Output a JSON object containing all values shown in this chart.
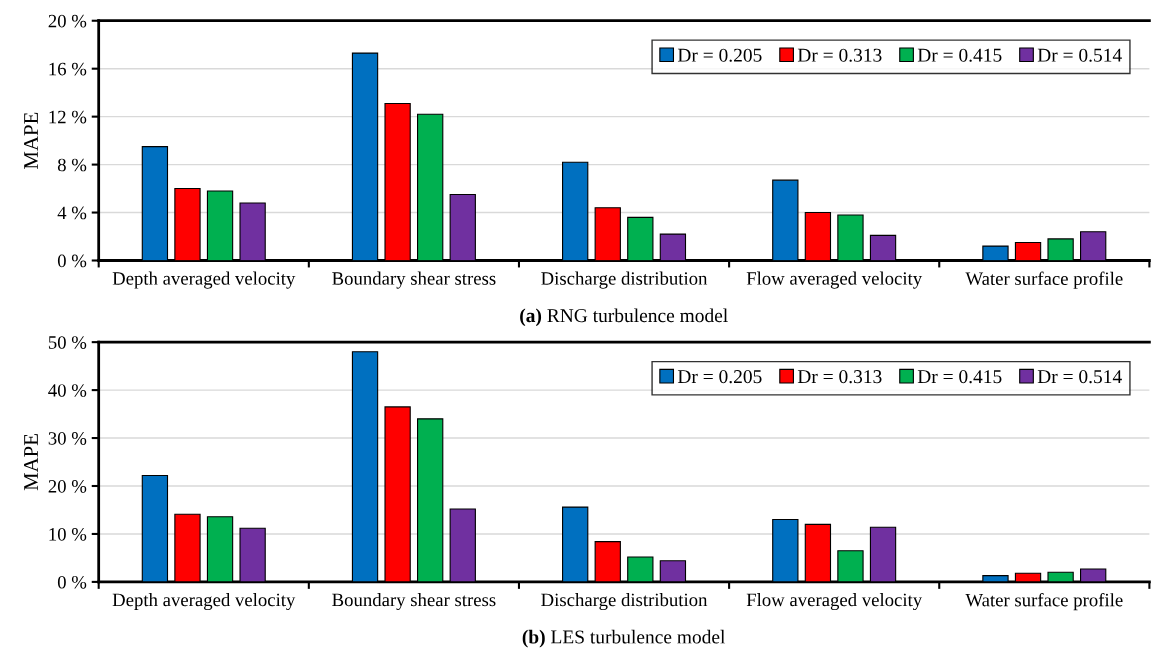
{
  "chart_data": [
    {
      "type": "bar",
      "title": "(a) RNG turbulence model",
      "ylabel": "MAPE",
      "categories": [
        "Depth averaged velocity",
        "Boundary shear stress",
        "Discharge distribution",
        "Flow averaged velocity",
        "Water surface profile"
      ],
      "series": [
        {
          "name": "Dr = 0.205",
          "color": "#0070c0",
          "values": [
            9.5,
            17.3,
            8.2,
            6.7,
            1.2
          ]
        },
        {
          "name": "Dr = 0.313",
          "color": "#ff0000",
          "values": [
            6.0,
            13.1,
            4.4,
            4.0,
            1.5
          ]
        },
        {
          "name": "Dr = 0.415",
          "color": "#00b050",
          "values": [
            5.8,
            12.2,
            3.6,
            3.8,
            1.8
          ]
        },
        {
          "name": "Dr = 0.514",
          "color": "#7030a0",
          "values": [
            4.8,
            5.5,
            2.2,
            2.1,
            2.4
          ]
        }
      ],
      "ylim": [
        0,
        20
      ],
      "yticks": [
        {
          "value": 0,
          "label": "0 %"
        },
        {
          "value": 4,
          "label": "4 %"
        },
        {
          "value": 8,
          "label": "8 %"
        },
        {
          "value": 12,
          "label": "12 %"
        },
        {
          "value": 16,
          "label": "16 %"
        },
        {
          "value": 20,
          "label": "20 %"
        }
      ],
      "grid": "y",
      "legend": "top right"
    },
    {
      "type": "bar",
      "title": "(b) LES turbulence model",
      "ylabel": "MAPE",
      "categories": [
        "Depth averaged velocity",
        "Boundary shear stress",
        "Discharge distribution",
        "Flow averaged velocity",
        "Water surface profile"
      ],
      "series": [
        {
          "name": "Dr = 0.205",
          "color": "#0070c0",
          "values": [
            22.2,
            48.0,
            15.6,
            13.0,
            1.3
          ]
        },
        {
          "name": "Dr = 0.313",
          "color": "#ff0000",
          "values": [
            14.1,
            36.5,
            8.4,
            12.0,
            1.8
          ]
        },
        {
          "name": "Dr = 0.415",
          "color": "#00b050",
          "values": [
            13.6,
            34.0,
            5.2,
            6.5,
            2.0
          ]
        },
        {
          "name": "Dr = 0.514",
          "color": "#7030a0",
          "values": [
            11.2,
            15.2,
            4.4,
            11.4,
            2.7
          ]
        }
      ],
      "ylim": [
        0,
        50
      ],
      "yticks": [
        {
          "value": 0,
          "label": "0 %"
        },
        {
          "value": 10,
          "label": "10 %"
        },
        {
          "value": 20,
          "label": "20 %"
        },
        {
          "value": 30,
          "label": "30 %"
        },
        {
          "value": 40,
          "label": "40 %"
        },
        {
          "value": 50,
          "label": "50 %"
        }
      ],
      "grid": "y",
      "legend": "top right"
    }
  ]
}
